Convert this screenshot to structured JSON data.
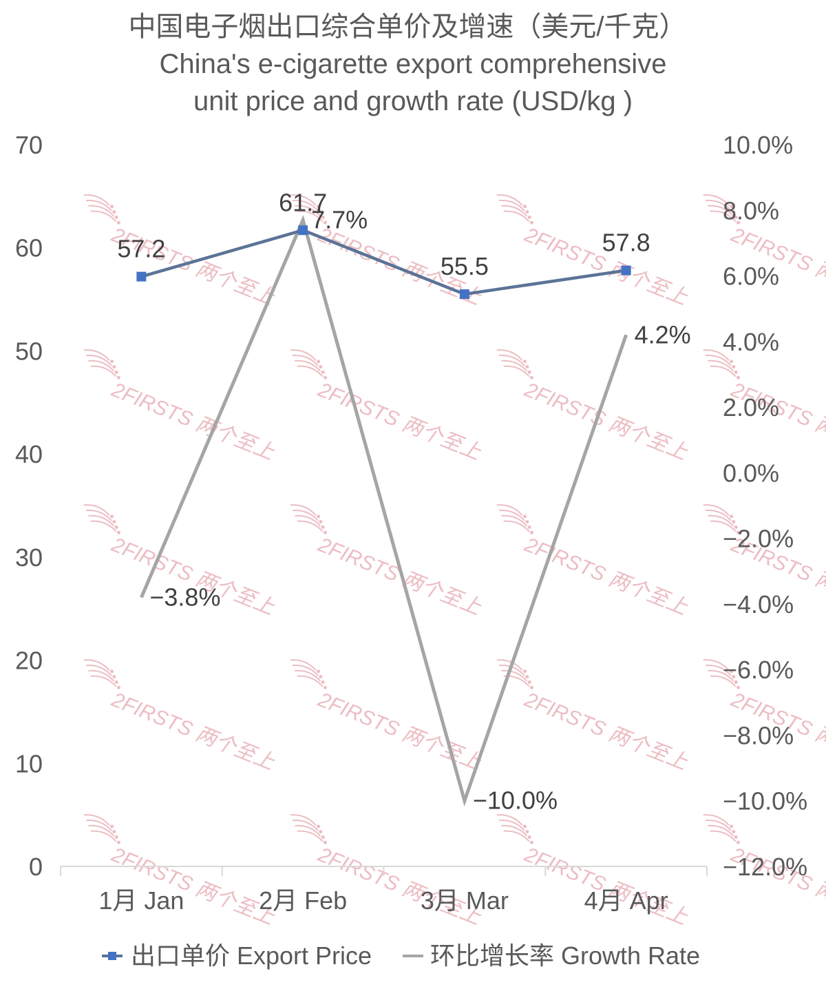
{
  "chart_data": {
    "type": "line",
    "title_lines": [
      "中国电子烟出口综合单价及增速（美元/千克）",
      "China's e-cigarette export comprehensive",
      "unit price and growth rate (USD/kg )"
    ],
    "categories": [
      "1月 Jan",
      "2月 Feb",
      "3月 Mar",
      "4月 Apr"
    ],
    "series": [
      {
        "name": "出口单价 Export Price",
        "axis": "left",
        "color": "#5b7396",
        "marker_color": "#4472c4",
        "values": [
          57.2,
          61.7,
          55.5,
          57.8
        ],
        "labels": [
          "57.2",
          "61.7",
          "55.5",
          "57.8"
        ]
      },
      {
        "name": "环比增长率 Growth Rate",
        "axis": "right",
        "color": "#a5a5a5",
        "values": [
          -3.8,
          7.7,
          -10.0,
          4.2
        ],
        "labels": [
          "−3.8%",
          "7.7%",
          "−10.0%",
          "4.2%"
        ]
      }
    ],
    "y_left": {
      "ylim": [
        0,
        70
      ],
      "ticks": [
        "0",
        "10",
        "20",
        "30",
        "40",
        "50",
        "60",
        "70"
      ]
    },
    "y_right": {
      "ylim": [
        -12,
        10
      ],
      "ticks": [
        "−12.0%",
        "−10.0%",
        "−8.0%",
        "−6.0%",
        "−4.0%",
        "−2.0%",
        "0.0%",
        "2.0%",
        "4.0%",
        "6.0%",
        "8.0%",
        "10.0%"
      ]
    },
    "grid": false,
    "legend_position": "bottom",
    "watermark": {
      "text": "2FIRSTS 两个至上",
      "color": "#e6a8ae"
    }
  }
}
